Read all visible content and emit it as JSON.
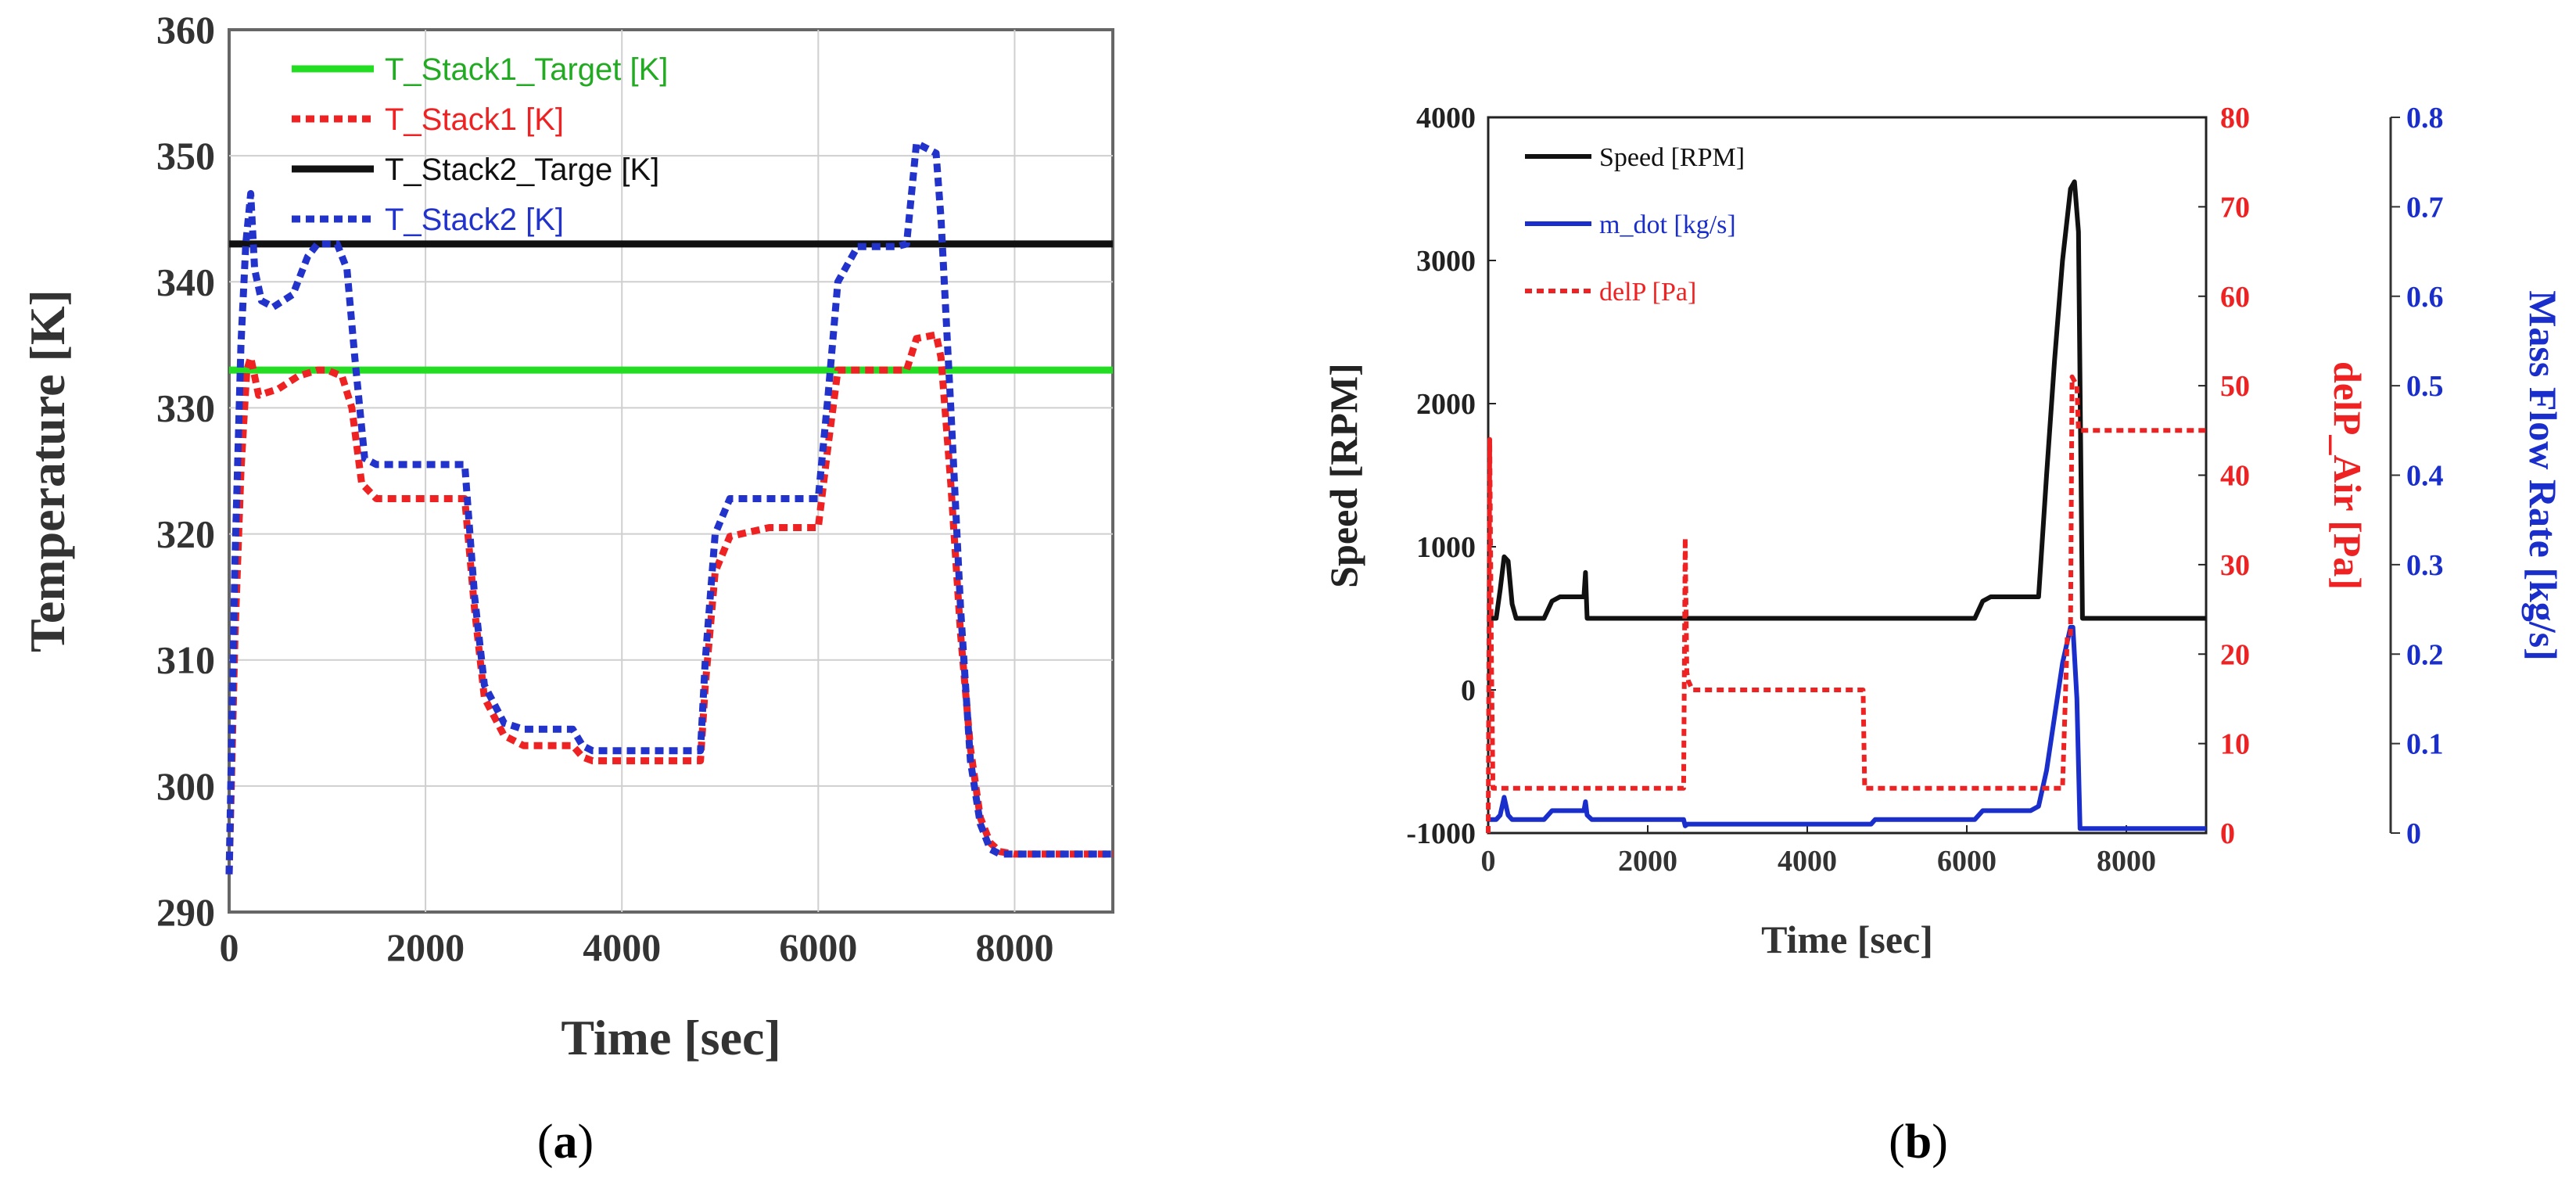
{
  "chart_data": [
    {
      "type": "line",
      "panel": "a",
      "caption_open": "(",
      "caption_letter": "a",
      "caption_close": ")",
      "xlabel": "Time [sec]",
      "ylabel": "Temperature [K]",
      "xlim": [
        0,
        9000
      ],
      "ylim": [
        290,
        360
      ],
      "xticks": [
        0,
        2000,
        4000,
        6000,
        8000
      ],
      "yticks": [
        290,
        300,
        310,
        320,
        330,
        340,
        350,
        360
      ],
      "grid": true,
      "legend_position": "top-left",
      "series": [
        {
          "name": "T_Stack1_Target [K]",
          "color": "#22dd22",
          "style": "solid",
          "x": [
            0,
            9000
          ],
          "y": [
            333,
            333
          ]
        },
        {
          "name": "T_Stack1 [K]",
          "color": "#ee2222",
          "style": "dotted",
          "x": [
            0,
            60,
            120,
            180,
            220,
            300,
            500,
            700,
            900,
            1000,
            1150,
            1250,
            1350,
            1500,
            2000,
            2400,
            2500,
            2600,
            2800,
            3000,
            3500,
            3600,
            3700,
            4000,
            4500,
            4800,
            4850,
            4950,
            5100,
            5500,
            6000,
            6100,
            6200,
            6400,
            6900,
            7000,
            7200,
            7250,
            7350,
            7450,
            7550,
            7650,
            7750,
            7850,
            8000,
            8500,
            9000
          ],
          "y": [
            293,
            312,
            325,
            333,
            334,
            331,
            331.5,
            332.5,
            333,
            333,
            332.5,
            330,
            324,
            322.8,
            322.8,
            322.8,
            314,
            307,
            304,
            303.2,
            303.2,
            302.3,
            302,
            302,
            302,
            302,
            308,
            317,
            319.8,
            320.5,
            320.5,
            327,
            333,
            333,
            333,
            335.5,
            335.8,
            334,
            324,
            312,
            303,
            297.5,
            295.5,
            294.8,
            294.6,
            294.6,
            294.6
          ]
        },
        {
          "name": "T_Stack2_Targe [K]",
          "color": "#111111",
          "style": "solid",
          "x": [
            0,
            9000
          ],
          "y": [
            343,
            343
          ]
        },
        {
          "name": "T_Stack2 [K]",
          "color": "#2233cc",
          "style": "dotted",
          "x": [
            0,
            60,
            120,
            170,
            220,
            260,
            330,
            450,
            650,
            800,
            900,
            1000,
            1100,
            1200,
            1280,
            1380,
            1500,
            2000,
            2400,
            2500,
            2600,
            2800,
            3000,
            3500,
            3600,
            3700,
            4000,
            4500,
            4800,
            4850,
            4950,
            5100,
            5500,
            6000,
            6100,
            6200,
            6400,
            6800,
            6900,
            7000,
            7200,
            7250,
            7350,
            7450,
            7550,
            7650,
            7750,
            7850,
            8000,
            8500,
            9000
          ],
          "y": [
            293,
            318,
            335,
            343,
            347,
            341,
            338.5,
            338,
            339,
            342,
            343,
            343,
            343,
            341,
            334,
            326,
            325.5,
            325.5,
            325.5,
            315,
            308,
            305,
            304.5,
            304.5,
            303.2,
            302.8,
            302.8,
            302.8,
            302.8,
            310,
            320,
            322.8,
            322.8,
            322.8,
            331,
            340,
            342.8,
            342.8,
            343,
            351,
            350.2,
            345,
            330,
            314,
            302,
            297,
            295,
            294.6,
            294.6,
            294.6,
            294.6
          ]
        }
      ]
    },
    {
      "type": "line",
      "panel": "b",
      "caption_open": "(",
      "caption_letter": "b",
      "caption_close": ")",
      "xlabel": "Time [sec]",
      "ylabel_left": "Speed [RPM]",
      "ylabel_right1": "delP_Air [Pa]",
      "ylabel_right2": "Mass Flow Rate [kg/s]",
      "xlim": [
        0,
        9000
      ],
      "ylim_left": [
        -1000,
        4000
      ],
      "ylim_right1": [
        0,
        80
      ],
      "ylim_right2": [
        0,
        0.8
      ],
      "xticks": [
        0,
        2000,
        4000,
        6000,
        8000
      ],
      "yticks_left": [
        -1000,
        0,
        1000,
        2000,
        3000,
        4000
      ],
      "yticks_right1": [
        0,
        10,
        20,
        30,
        40,
        50,
        60,
        70,
        80
      ],
      "yticks_right2": [
        "0",
        "0.1",
        "0.2",
        "0.3",
        "0.4",
        "0.5",
        "0.6",
        "0.7",
        "0.8"
      ],
      "grid": false,
      "legend_position": "top-left",
      "series": [
        {
          "name": "Speed [RPM]",
          "axis": "left",
          "color": "#111111",
          "style": "solid",
          "x": [
            0,
            100,
            150,
            200,
            250,
            300,
            350,
            450,
            700,
            800,
            900,
            1100,
            1200,
            1220,
            1240,
            1300,
            6100,
            6200,
            6300,
            6900,
            7000,
            7100,
            7200,
            7300,
            7350,
            7400,
            7450,
            9000
          ],
          "y": [
            500,
            500,
            700,
            930,
            900,
            600,
            500,
            500,
            500,
            620,
            650,
            650,
            650,
            820,
            500,
            500,
            500,
            620,
            650,
            650,
            1500,
            2300,
            3000,
            3500,
            3550,
            3200,
            500,
            500
          ]
        },
        {
          "name": "m_dot [kg/s]",
          "axis": "right2",
          "color": "#1a2ecc",
          "style": "solid",
          "x": [
            0,
            100,
            150,
            200,
            250,
            300,
            350,
            600,
            700,
            800,
            1200,
            1220,
            1240,
            1300,
            2450,
            2470,
            2500,
            4800,
            4850,
            6100,
            6200,
            6800,
            6900,
            7000,
            7100,
            7200,
            7300,
            7330,
            7380,
            7420,
            7460,
            9000
          ],
          "y": [
            0.015,
            0.015,
            0.02,
            0.04,
            0.02,
            0.015,
            0.015,
            0.015,
            0.015,
            0.025,
            0.025,
            0.035,
            0.02,
            0.015,
            0.015,
            0.008,
            0.01,
            0.01,
            0.015,
            0.015,
            0.025,
            0.025,
            0.03,
            0.07,
            0.13,
            0.19,
            0.23,
            0.23,
            0.15,
            0.005,
            0.005,
            0.005
          ]
        },
        {
          "name": "delP [Pa]",
          "axis": "right1",
          "color": "#ee2222",
          "style": "dotted",
          "x": [
            0,
            20,
            40,
            60,
            100,
            2450,
            2470,
            2490,
            2510,
            2560,
            2700,
            3000,
            4700,
            4720,
            4800,
            7200,
            7260,
            7300,
            7320,
            7380,
            7400,
            9000
          ],
          "y": [
            0,
            44,
            20,
            5,
            5,
            5,
            33,
            18,
            17,
            16,
            16,
            16,
            16,
            5,
            5,
            5,
            22,
            22,
            51,
            50,
            45,
            45
          ]
        }
      ]
    }
  ]
}
